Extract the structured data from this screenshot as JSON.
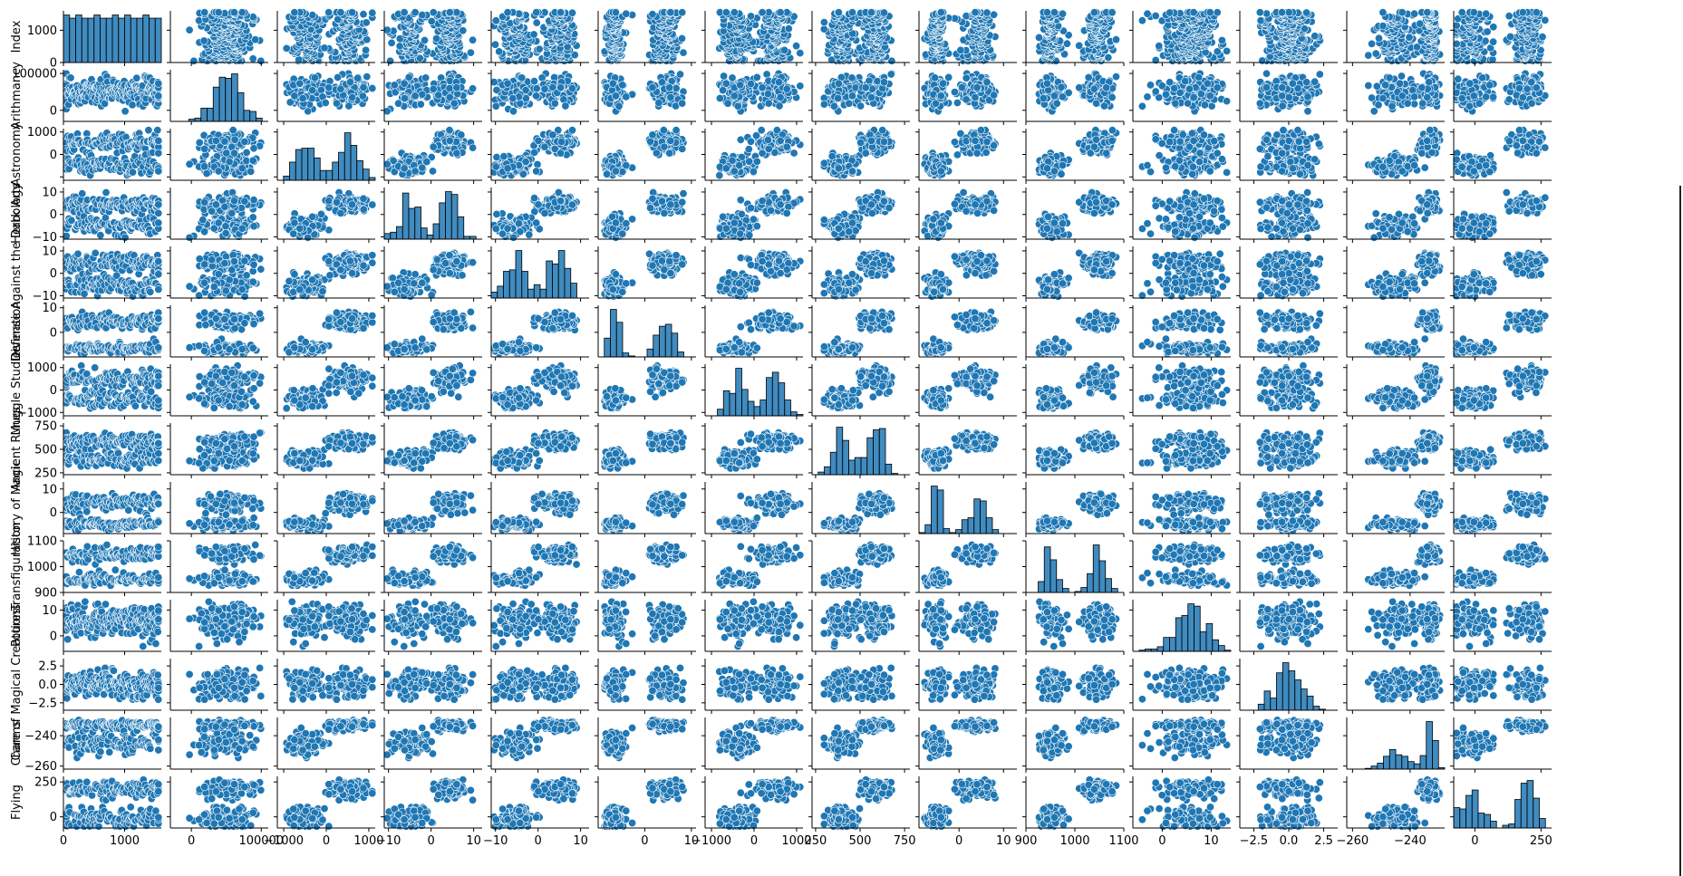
{
  "colors": {
    "marker": "#1f77b4",
    "edge": "#ffffff",
    "hist_edge": "#000000"
  },
  "chart_data": {
    "type": "scatter",
    "kind": "pairplot",
    "diagonal": "histogram",
    "variables": [
      {
        "name": "Index",
        "range": [
          0,
          1600
        ],
        "ticks": [
          0,
          1000
        ],
        "ytick_labels": [
          "0",
          "1000"
        ],
        "xtick_labels": [
          "0",
          "1000"
        ],
        "dist": {
          "type": "uniform",
          "lo": 0,
          "hi": 1600
        }
      },
      {
        "name": "Arithmancy",
        "range": [
          -30000,
          110000
        ],
        "ticks": [
          0,
          100000
        ],
        "ytick_labels": [
          "0",
          "100000"
        ],
        "xtick_labels": [
          "0",
          "100000"
        ],
        "dist": {
          "type": "normal",
          "m": 49600,
          "s": 16700
        }
      },
      {
        "name": "Astronomy",
        "range": [
          -1150,
          1150
        ],
        "ticks": [
          -1000,
          0,
          1000
        ],
        "ytick_labels": [
          "",
          "0",
          "1000"
        ],
        "xtick_labels": [
          "−1000",
          "0",
          "1000"
        ],
        "dist": {
          "type": "bimodal",
          "m1": -480,
          "s1": 200,
          "m2": 520,
          "s2": 220
        }
      },
      {
        "name": "Herbology",
        "range": [
          -11,
          12
        ],
        "ticks": [
          -10,
          0,
          10
        ],
        "ytick_labels": [
          "−10",
          "0",
          "10"
        ],
        "xtick_labels": [
          "−10",
          "0",
          "10"
        ],
        "dist": {
          "type": "bimodal",
          "m1": -5,
          "s1": 2.2,
          "m2": 4.5,
          "s2": 2.0
        }
      },
      {
        "name": "Defense Against the Dark Arts",
        "range": [
          -11,
          12
        ],
        "ticks": [
          -10,
          0,
          10
        ],
        "ytick_labels": [
          "−10",
          "0",
          "10"
        ],
        "xtick_labels": [
          "−10",
          "0",
          "10"
        ],
        "dist": {
          "type": "bimodal",
          "m1": -5.2,
          "s1": 2.0,
          "m2": 4.8,
          "s2": 2.2
        }
      },
      {
        "name": "Divination",
        "range": [
          -10,
          11
        ],
        "ticks": [
          0,
          10
        ],
        "ytick_labels": [
          "0",
          "10"
        ],
        "xtick_labels": [
          "0",
          "10"
        ],
        "dist": {
          "type": "bimodal",
          "m1": -6.5,
          "s1": 1.0,
          "m2": 4.5,
          "s2": 1.6
        }
      },
      {
        "name": "Muggle Studies",
        "range": [
          -1150,
          1150
        ],
        "ticks": [
          -1000,
          0,
          1000
        ],
        "ytick_labels": [
          "−1000",
          "0",
          "1000"
        ],
        "xtick_labels": [
          "−1000",
          "0",
          "1000"
        ],
        "dist": {
          "type": "bimodal",
          "m1": -400,
          "s1": 200,
          "m2": 520,
          "s2": 230
        }
      },
      {
        "name": "Ancient Runes",
        "range": [
          230,
          780
        ],
        "ticks": [
          250,
          500,
          750
        ],
        "ytick_labels": [
          "250",
          "500",
          "750"
        ],
        "xtick_labels": [
          "250",
          "500",
          "750"
        ],
        "dist": {
          "type": "bimodal",
          "m1": 400,
          "s1": 45,
          "m2": 600,
          "s2": 45
        }
      },
      {
        "name": "History of Magic",
        "range": [
          -9,
          13
        ],
        "ticks": [
          0,
          10
        ],
        "ytick_labels": [
          "0",
          "10"
        ],
        "xtick_labels": [
          "0",
          "10"
        ],
        "dist": {
          "type": "bimodal",
          "m1": -5,
          "s1": 1.0,
          "m2": 4.5,
          "s2": 2.2
        }
      },
      {
        "name": "Transfiguration",
        "range": [
          900,
          1100
        ],
        "ticks": [
          900,
          1000,
          1100
        ],
        "ytick_labels": [
          "900",
          "1000",
          "1100"
        ],
        "xtick_labels": [
          "900",
          "1000",
          "1100"
        ],
        "dist": {
          "type": "bimodal",
          "m1": 950,
          "s1": 12,
          "m2": 1050,
          "s2": 15
        }
      },
      {
        "name": "Potions",
        "range": [
          -6,
          14
        ],
        "ticks": [
          0,
          10
        ],
        "ytick_labels": [
          "0",
          "10"
        ],
        "xtick_labels": [
          "0",
          "10"
        ],
        "dist": {
          "type": "normal",
          "m": 5.9,
          "s": 3.1
        }
      },
      {
        "name": "Care of Magical Creatures",
        "range": [
          -3.5,
          3.5
        ],
        "ticks": [
          -2.5,
          0,
          2.5
        ],
        "ytick_labels": [
          "−2.5",
          "0.0",
          "2.5"
        ],
        "xtick_labels": [
          "−2.5",
          "0.0",
          "2.5"
        ],
        "dist": {
          "type": "normal",
          "m": 0,
          "s": 0.95
        }
      },
      {
        "name": "Charms",
        "range": [
          -262,
          -228
        ],
        "ticks": [
          -260,
          -240
        ],
        "ytick_labels": [
          "−260",
          "−240"
        ],
        "xtick_labels": [
          "−260",
          "−240"
        ],
        "dist": {
          "type": "bimodal",
          "m1": -245,
          "s1": 4,
          "m2": -233,
          "s2": 1.5
        }
      },
      {
        "name": "Flying",
        "range": [
          -80,
          290
        ],
        "ticks": [
          0,
          250
        ],
        "ytick_labels": [
          "0",
          "250"
        ],
        "xtick_labels": [
          "0",
          "250"
        ],
        "dist": {
          "type": "bimodal",
          "m1": -5,
          "s1": 40,
          "m2": 200,
          "s2": 30
        }
      }
    ],
    "points_per_panel": 230
  }
}
